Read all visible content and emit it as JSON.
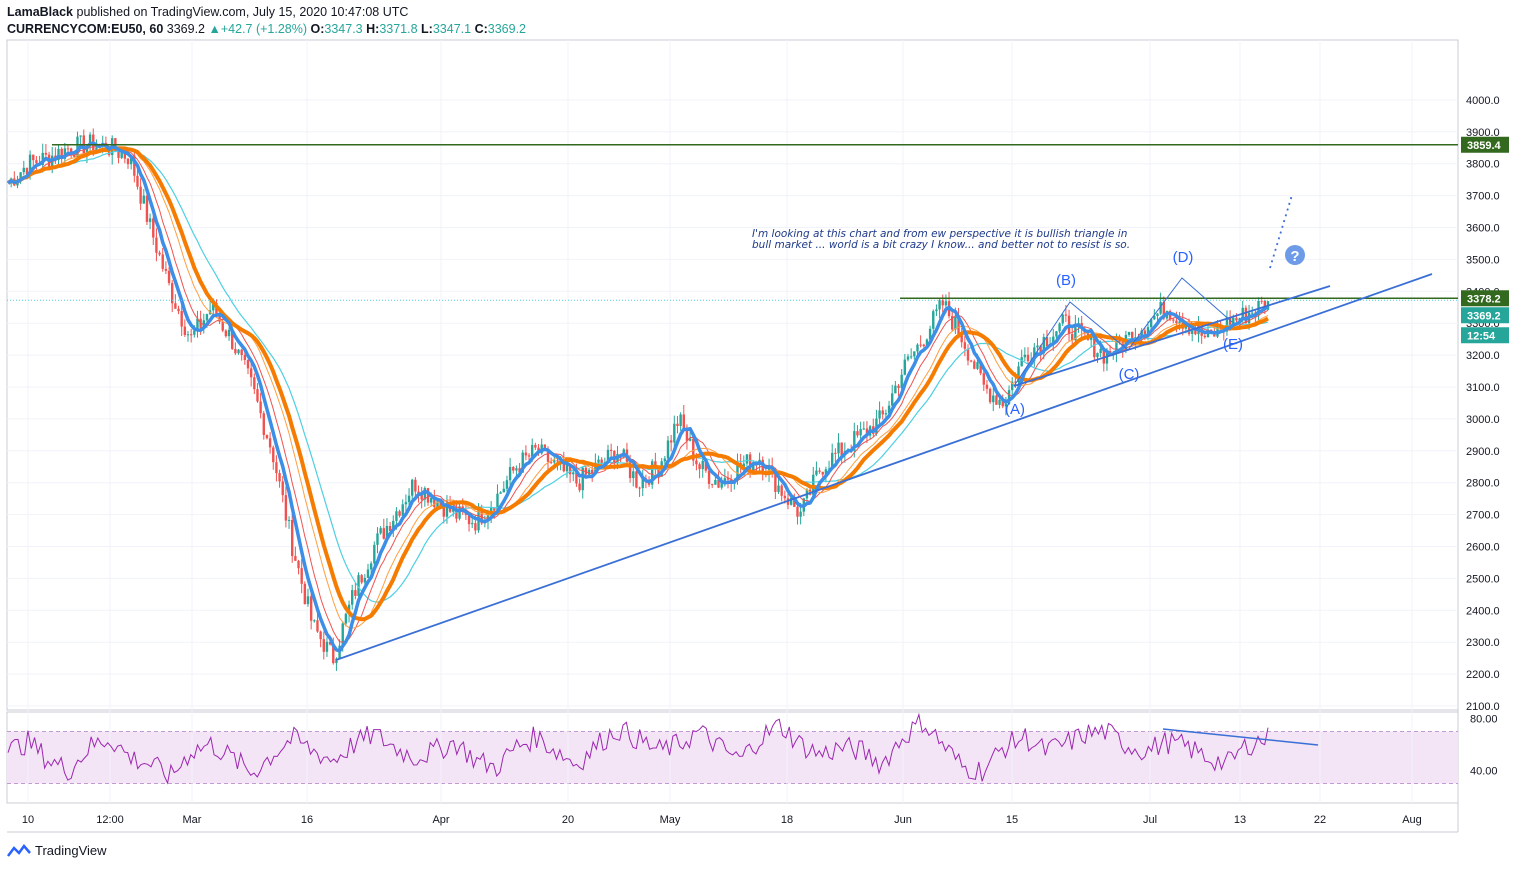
{
  "header": {
    "author": "LamaBlack",
    "published_text": "published on TradingView.com, July 15, 2020 10:47:08 UTC",
    "symbol": "CURRENCYCOM:EU50, 60",
    "last": "3369.2",
    "change": "+42.7 (+1.28%)",
    "o_label": "O:",
    "o": "3347.3",
    "h_label": "H:",
    "h": "3371.8",
    "l_label": "L:",
    "l": "3347.1",
    "c_label": "C:",
    "c": "3369.2"
  },
  "footer": {
    "brand": "TradingView"
  },
  "colors": {
    "bull": "#26a69a",
    "bear": "#ef5350",
    "trend": "#3a6fd6",
    "ma_orange": "#f57c00",
    "ma_blue": "#3d8ee6",
    "ma_teal": "#4dd0e1",
    "ma_thin_red": "#ef5350",
    "resistance": "#33691e",
    "rsi": "#9c27b0",
    "rsi_band": "#f3e5f5"
  },
  "chart_data": [
    {
      "type": "candlestick",
      "title": "",
      "ylim": [
        2100,
        4100
      ],
      "y_ticks": [
        "4000.0",
        "3900.0",
        "3800.0",
        "3700.0",
        "3600.0",
        "3500.0",
        "3400.0",
        "3300.0",
        "3200.0",
        "3100.0",
        "3000.0",
        "2900.0",
        "2800.0",
        "2700.0",
        "2600.0",
        "2500.0",
        "2400.0",
        "2300.0",
        "2200.0",
        "2100.0"
      ],
      "x_ticks": [
        "10",
        "12:00",
        "Mar",
        "16",
        "Apr",
        "20",
        "May",
        "18",
        "Jun",
        "15",
        "Jul",
        "13",
        "22",
        "Aug"
      ],
      "price_path": [
        3740,
        3800,
        3820,
        3850,
        3860,
        3850,
        3820,
        3600,
        3400,
        3250,
        3350,
        3250,
        3100,
        2900,
        2600,
        2350,
        2250,
        2450,
        2600,
        2700,
        2800,
        2750,
        2700,
        2680,
        2750,
        2850,
        2900,
        2850,
        2800,
        2850,
        2900,
        2800,
        2850,
        3000,
        2850,
        2800,
        2850,
        2880,
        2780,
        2700,
        2850,
        2900,
        2950,
        3000,
        3150,
        3250,
        3360,
        3250,
        3100,
        3050,
        3200,
        3250,
        3300,
        3250,
        3200,
        3250,
        3300,
        3350,
        3300,
        3250,
        3300,
        3330,
        3369
      ],
      "price_labels": {
        "resistance_top": "3859.4",
        "resistance_mid": "3378.2",
        "last": "3369.2",
        "countdown": "12:54"
      },
      "wave_labels": [
        "(A)",
        "(B)",
        "(C)",
        "(D)",
        "(E)"
      ],
      "annotation": [
        "I'm looking at this chart and from ew perspective it is bullish triangle in",
        "bull market ... world is a bit crazy I know... and better not to resist is so."
      ]
    },
    {
      "type": "line",
      "title": "",
      "ylim": [
        15,
        85
      ],
      "y_ticks": [
        "80.00",
        "40.00"
      ],
      "band": [
        30,
        70
      ],
      "series": [
        {
          "values": [
            55,
            62,
            48,
            40,
            58,
            65,
            50,
            45,
            35,
            55,
            60,
            50,
            38,
            52,
            65,
            55,
            48,
            60,
            68,
            58,
            50,
            55,
            62,
            48,
            42,
            58,
            66,
            55,
            45,
            60,
            72,
            64,
            55,
            60,
            70,
            58,
            48,
            65,
            75,
            60,
            52,
            58,
            55,
            45,
            65,
            78,
            60,
            42,
            40,
            58,
            66,
            55,
            60,
            68,
            70,
            60,
            55,
            62,
            58,
            50,
            45,
            60,
            65
          ]
        }
      ]
    }
  ]
}
